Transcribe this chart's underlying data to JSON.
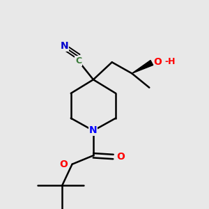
{
  "bg_color": "#e8e8e8",
  "bond_color": "#000000",
  "n_color": "#0000ff",
  "o_color": "#ff0000",
  "cn_color": "#0000cd",
  "c_color": "#3a7a3a",
  "line_width": 1.8,
  "figsize": [
    3.0,
    3.0
  ],
  "dpi": 100,
  "xlim": [
    2.0,
    8.5
  ],
  "ylim": [
    0.8,
    9.2
  ],
  "C4": [
    4.8,
    6.0
  ],
  "C3R": [
    5.7,
    5.45
  ],
  "C2R": [
    5.7,
    4.45
  ],
  "N": [
    4.8,
    3.95
  ],
  "C2L": [
    3.9,
    4.45
  ],
  "C3L": [
    3.9,
    5.45
  ],
  "CN_C": [
    4.2,
    6.75
  ],
  "CN_N": [
    3.65,
    7.35
  ],
  "CH2": [
    5.55,
    6.7
  ],
  "CHOH": [
    6.35,
    6.25
  ],
  "OHx": 7.15,
  "OHy": 6.68,
  "Me_x": 7.05,
  "Me_y": 5.68,
  "CO_x": 4.8,
  "CO_y": 2.95,
  "O_db_x": 5.6,
  "O_db_y": 2.9,
  "O_s_x": 3.95,
  "O_s_y": 2.6,
  "qC_x": 3.55,
  "qC_y": 1.75
}
